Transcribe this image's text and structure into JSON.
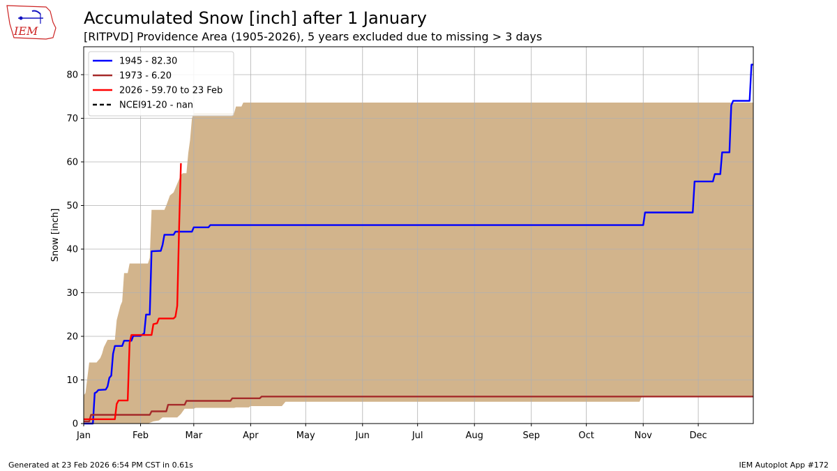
{
  "header": {
    "title": "Accumulated Snow [inch] after 1 January",
    "subtitle": "[RITPVD] Providence Area (1905-2026), 5 years excluded due to missing > 3 days"
  },
  "logo": {
    "text": "IEM",
    "icon": "iem-state-logo"
  },
  "footer": {
    "left": "Generated at 23 Feb 2026 6:54 PM CST in 0.61s",
    "right": "IEM Autoplot App #172"
  },
  "colors": {
    "envelope": "#d2b48c",
    "1945": "#0000ff",
    "1973": "#a52a2a",
    "2026": "#ff0000",
    "NCEI91-20": "#000000",
    "grid": "#b0b0b0"
  },
  "chart_data": {
    "type": "line",
    "title": "Accumulated Snow [inch] after 1 January",
    "subtitle": "[RITPVD] Providence Area (1905-2026), 5 years excluded due to missing > 3 days",
    "xlabel": "",
    "ylabel": "Snow [inch]",
    "x_unit": "day of year",
    "xlim": [
      1,
      366
    ],
    "ylim": [
      0,
      86.4
    ],
    "yticks": [
      0,
      10,
      20,
      30,
      40,
      50,
      60,
      70,
      80
    ],
    "xticks": [
      {
        "label": "Jan",
        "day": 1
      },
      {
        "label": "Feb",
        "day": 32
      },
      {
        "label": "Mar",
        "day": 61
      },
      {
        "label": "Apr",
        "day": 92
      },
      {
        "label": "May",
        "day": 122
      },
      {
        "label": "Jun",
        "day": 153
      },
      {
        "label": "Jul",
        "day": 183
      },
      {
        "label": "Aug",
        "day": 214
      },
      {
        "label": "Sep",
        "day": 245
      },
      {
        "label": "Oct",
        "day": 275
      },
      {
        "label": "Nov",
        "day": 306
      },
      {
        "label": "Dec",
        "day": 336
      }
    ],
    "grid": true,
    "legend_position": "top-left",
    "envelope": {
      "name": "range",
      "upper": [
        [
          1,
          6.5
        ],
        [
          2,
          7
        ],
        [
          4,
          14
        ],
        [
          8,
          14
        ],
        [
          9,
          14.5
        ],
        [
          10,
          15
        ],
        [
          11,
          16
        ],
        [
          12,
          17.5
        ],
        [
          14,
          19.2
        ],
        [
          18,
          19.2
        ],
        [
          19,
          23.7
        ],
        [
          21,
          27
        ],
        [
          22,
          28
        ],
        [
          23,
          34.5
        ],
        [
          25,
          34.5
        ],
        [
          26,
          36.7
        ],
        [
          36,
          36.7
        ],
        [
          37,
          38
        ],
        [
          38,
          49
        ],
        [
          45,
          49
        ],
        [
          46,
          50
        ],
        [
          48,
          52.3
        ],
        [
          50,
          53
        ],
        [
          52,
          55
        ],
        [
          54,
          57
        ],
        [
          55,
          57.4
        ],
        [
          57,
          57.4
        ],
        [
          58,
          62
        ],
        [
          59,
          65
        ],
        [
          60,
          70
        ],
        [
          61,
          71.2
        ],
        [
          83,
          71.2
        ],
        [
          84,
          72.7
        ],
        [
          87,
          72.7
        ],
        [
          88,
          73.6
        ],
        [
          366,
          73.6
        ]
      ],
      "lower": [
        [
          1,
          0
        ],
        [
          36,
          0
        ],
        [
          39,
          0.5
        ],
        [
          42,
          0.7
        ],
        [
          44,
          1.4
        ],
        [
          52,
          1.4
        ],
        [
          54,
          2.2
        ],
        [
          56,
          3.4
        ],
        [
          61,
          3.4
        ],
        [
          62,
          3.6
        ],
        [
          83,
          3.6
        ],
        [
          84,
          3.7
        ],
        [
          91,
          3.7
        ],
        [
          92,
          4
        ],
        [
          109,
          4
        ],
        [
          111,
          5
        ],
        [
          304,
          5
        ],
        [
          305,
          6
        ],
        [
          366,
          6
        ]
      ]
    },
    "series": [
      {
        "name": "1945 - 82.30",
        "key": "1945",
        "style": "solid",
        "points": [
          [
            1,
            0
          ],
          [
            6,
            0
          ],
          [
            7,
            7
          ],
          [
            8,
            7.2
          ],
          [
            9,
            7.7
          ],
          [
            13,
            7.8
          ],
          [
            14,
            8.5
          ],
          [
            15,
            10.5
          ],
          [
            16,
            11
          ],
          [
            17,
            16
          ],
          [
            18,
            17.8
          ],
          [
            22,
            17.8
          ],
          [
            23,
            19
          ],
          [
            27,
            19
          ],
          [
            28,
            20.1
          ],
          [
            32,
            20.1
          ],
          [
            34,
            20.7
          ],
          [
            35,
            25
          ],
          [
            37,
            25
          ],
          [
            38,
            39.5
          ],
          [
            43,
            39.6
          ],
          [
            44,
            41
          ],
          [
            45,
            43.3
          ],
          [
            50,
            43.3
          ],
          [
            51,
            44
          ],
          [
            60,
            44
          ],
          [
            61,
            45
          ],
          [
            69,
            45
          ],
          [
            70,
            45.5
          ],
          [
            306,
            45.5
          ],
          [
            307,
            48.4
          ],
          [
            333,
            48.4
          ],
          [
            334,
            55.5
          ],
          [
            344,
            55.5
          ],
          [
            345,
            57.2
          ],
          [
            348,
            57.2
          ],
          [
            349,
            62.2
          ],
          [
            353,
            62.2
          ],
          [
            354,
            73
          ],
          [
            355,
            74
          ],
          [
            364,
            74
          ],
          [
            365,
            82.3
          ],
          [
            366,
            82.3
          ]
        ]
      },
      {
        "name": "1973 - 6.20",
        "key": "1973",
        "style": "solid",
        "points": [
          [
            1,
            0.5
          ],
          [
            4,
            0.5
          ],
          [
            5,
            2
          ],
          [
            37,
            2
          ],
          [
            38,
            2.8
          ],
          [
            46,
            2.8
          ],
          [
            47,
            4.3
          ],
          [
            56,
            4.3
          ],
          [
            57,
            5.2
          ],
          [
            81,
            5.2
          ],
          [
            82,
            5.8
          ],
          [
            97,
            5.8
          ],
          [
            98,
            6.2
          ],
          [
            366,
            6.2
          ]
        ]
      },
      {
        "name": "2026 - 59.70 to 23 Feb",
        "key": "2026",
        "style": "solid",
        "points": [
          [
            1,
            1
          ],
          [
            18,
            1
          ],
          [
            19,
            4.5
          ],
          [
            20,
            5.3
          ],
          [
            25,
            5.3
          ],
          [
            26,
            18.5
          ],
          [
            27,
            20.3
          ],
          [
            38,
            20.3
          ],
          [
            39,
            22.8
          ],
          [
            41,
            23
          ],
          [
            42,
            24.1
          ],
          [
            50,
            24.1
          ],
          [
            51,
            24.5
          ],
          [
            52,
            27
          ],
          [
            53,
            45
          ],
          [
            54,
            59.7
          ]
        ]
      },
      {
        "name": "NCEI91-20 - nan",
        "key": "NCEI91-20",
        "style": "dashed",
        "points": []
      }
    ]
  }
}
